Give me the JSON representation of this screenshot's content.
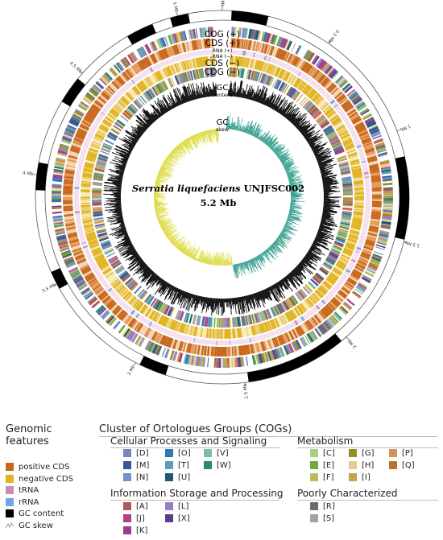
{
  "diagram": {
    "organism_species": "Serratia liquefaciens",
    "organism_strain": "UNJFSC002",
    "genome_size": "5.2 Mb",
    "ring_labels": [
      "COG (+)",
      "CDS (+)",
      "RNA (+)",
      "RNA (−)",
      "CDS (−)",
      "COG (−)"
    ],
    "gc_content_label": [
      "GC",
      "content"
    ],
    "gc_skew_label": [
      "GC",
      "skew"
    ],
    "tick_labels": [
      "0 Mb",
      "0.5 Mb",
      "1 Mb",
      "1.5 Mb",
      "2 Mb",
      "2.5 Mb",
      "3 Mb",
      "3.5 Mb",
      "4 Mb",
      "4.5 Mb",
      "5 Mb"
    ]
  },
  "legend": {
    "genomic_features": {
      "title": "Genomic features",
      "items": [
        {
          "label": "positive CDS",
          "color": "#c8661a"
        },
        {
          "label": "negative CDS",
          "color": "#e0b21e"
        },
        {
          "label": "tRNA",
          "color": "#c98bb8"
        },
        {
          "label": "rRNA",
          "color": "#6ea6e0"
        },
        {
          "label": "GC content",
          "color": "#000000"
        },
        {
          "label": "GC skew",
          "icon": "gc-skew-icon"
        }
      ]
    },
    "cog": {
      "title": "Cluster of Ortologues Groups (COGs)",
      "groups": [
        {
          "title": "Cellular Processes and Signaling",
          "items": [
            {
              "label": "[D]",
              "color": "#7b84c2"
            },
            {
              "label": "[M]",
              "color": "#3d52a4"
            },
            {
              "label": "[N]",
              "color": "#6d96c5"
            },
            {
              "label": "[O]",
              "color": "#2f78b7"
            },
            {
              "label": "[T]",
              "color": "#5c9cbd"
            },
            {
              "label": "[U]",
              "color": "#1c5a70"
            },
            {
              "label": "[V]",
              "color": "#7fbfa9"
            },
            {
              "label": "[W]",
              "color": "#2a8a6a"
            }
          ]
        },
        {
          "title": "Information Storage and Processing",
          "items": [
            {
              "label": "[A]",
              "color": "#b05a5a"
            },
            {
              "label": "[J]",
              "color": "#b0427f"
            },
            {
              "label": "[K]",
              "color": "#9a3d8d"
            },
            {
              "label": "[L]",
              "color": "#9a7ec8"
            },
            {
              "label": "[X]",
              "color": "#5b3d8a"
            }
          ]
        },
        {
          "title": "Metabolism",
          "items": [
            {
              "label": "[C]",
              "color": "#a7d07c"
            },
            {
              "label": "[E]",
              "color": "#74a83c"
            },
            {
              "label": "[F]",
              "color": "#b9bd5c"
            },
            {
              "label": "[G]",
              "color": "#8c9423"
            },
            {
              "label": "[H]",
              "color": "#e9c89a"
            },
            {
              "label": "[I]",
              "color": "#c9a24a"
            },
            {
              "label": "[P]",
              "color": "#d4915a"
            },
            {
              "label": "[Q]",
              "color": "#b8742d"
            }
          ]
        },
        {
          "title": "Poorly Characterized",
          "items": [
            {
              "label": "[R]",
              "color": "#6b6b6b"
            },
            {
              "label": "[S]",
              "color": "#a3a3a3"
            }
          ]
        }
      ]
    }
  }
}
